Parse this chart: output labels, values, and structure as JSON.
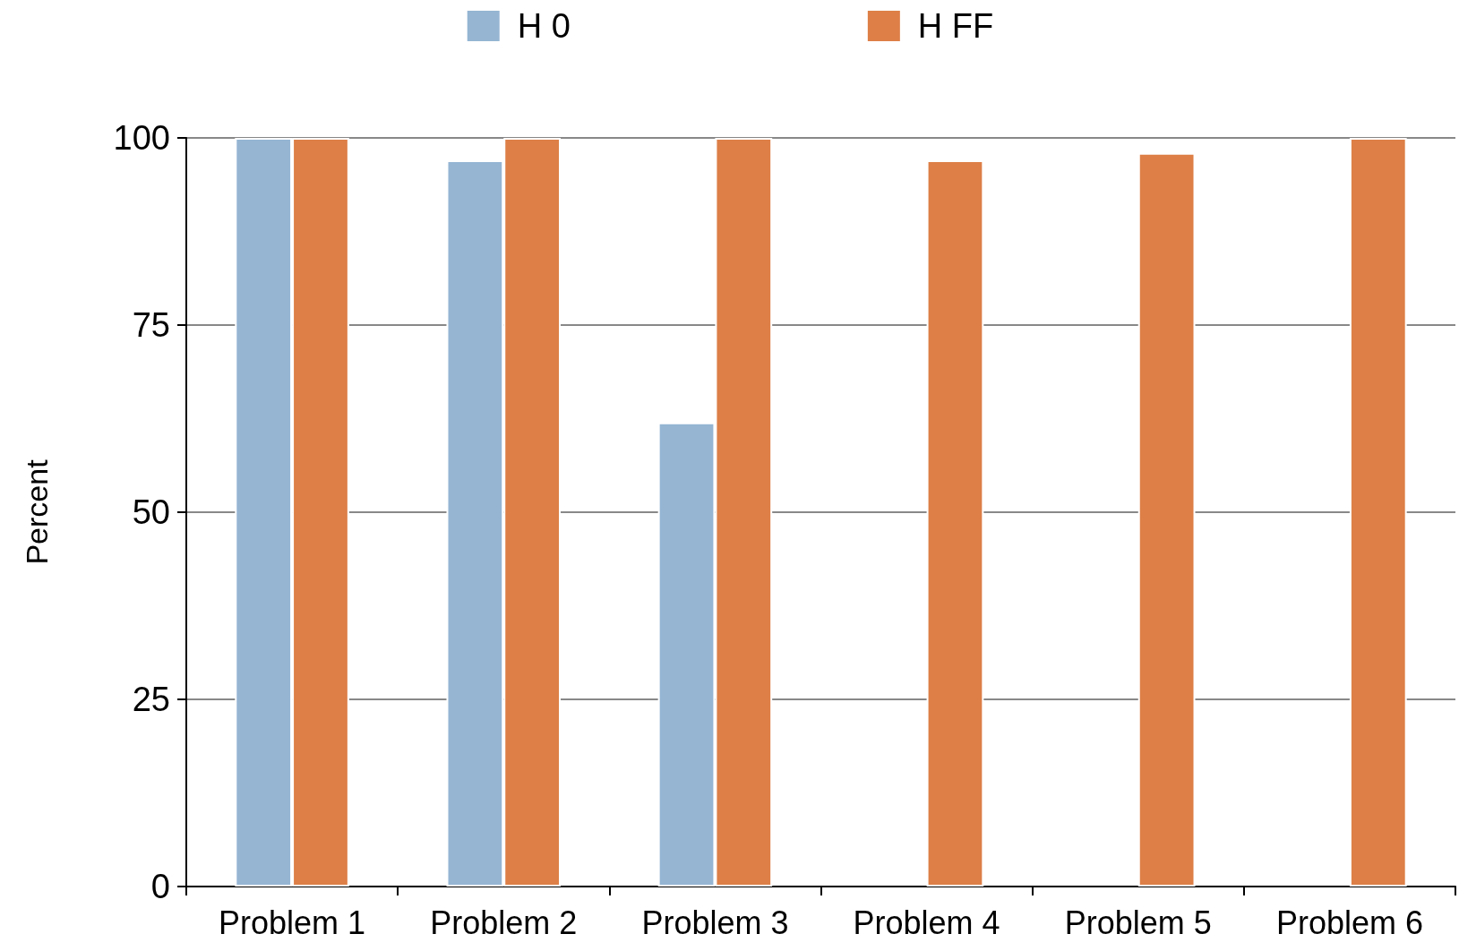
{
  "chart_data": {
    "type": "bar",
    "ylabel": "Percent",
    "categories": [
      "Problem 1",
      "Problem 2",
      "Problem 3",
      "Problem 4",
      "Problem 5",
      "Problem 6"
    ],
    "series": [
      {
        "name": "H 0",
        "color": "#95b5d3",
        "values": [
          100,
          97,
          62,
          null,
          null,
          null
        ]
      },
      {
        "name": "H FF",
        "color": "#dd7f47",
        "values": [
          100,
          100,
          100,
          97,
          98,
          100
        ]
      }
    ],
    "ylim": [
      0,
      100
    ],
    "yticks": [
      0,
      25,
      50,
      75,
      100
    ],
    "grid": "y",
    "legend": "top"
  }
}
